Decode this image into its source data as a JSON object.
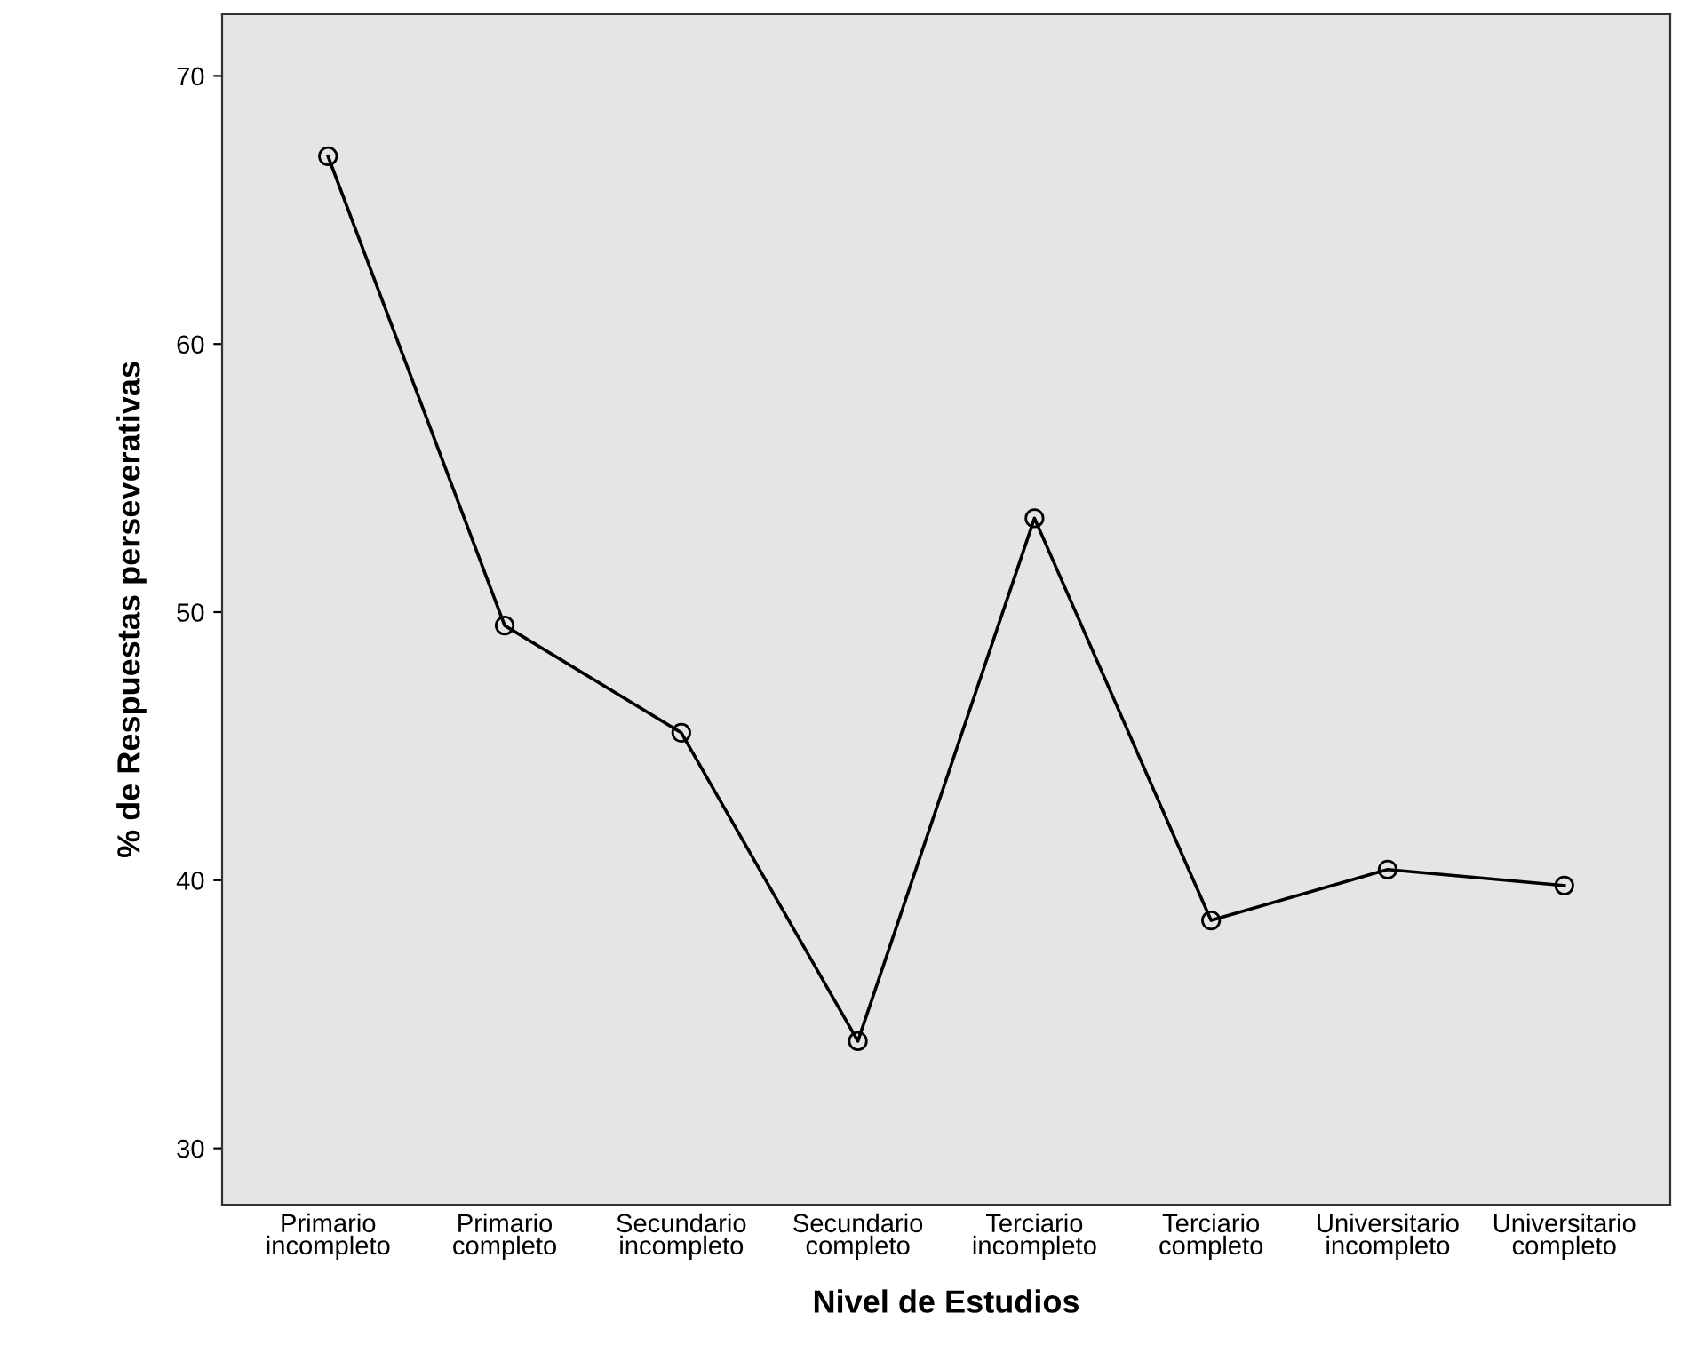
{
  "chart_data": {
    "type": "line",
    "xlabel": "Nivel de Estudios",
    "ylabel": "% de Respuestas perseverativas",
    "categories": [
      "Primario\nincompleto",
      "Primario\ncompleto",
      "Secundario\nincompleto",
      "Secundario\ncompleto",
      "Terciario\nincompleto",
      "Terciario\ncompleto",
      "Universitario\nincompleto",
      "Universitario\ncompleto"
    ],
    "series": [
      {
        "color": "#000000",
        "values": [
          67.0,
          49.5,
          45.5,
          34.0,
          53.5,
          38.5,
          40.4,
          39.8
        ]
      }
    ],
    "ylim": [
      27.9,
      72.3
    ],
    "yticks": [
      30,
      40,
      50,
      60,
      70
    ],
    "grid": false,
    "legend": false,
    "marker": "circle",
    "line_style": "solid"
  }
}
